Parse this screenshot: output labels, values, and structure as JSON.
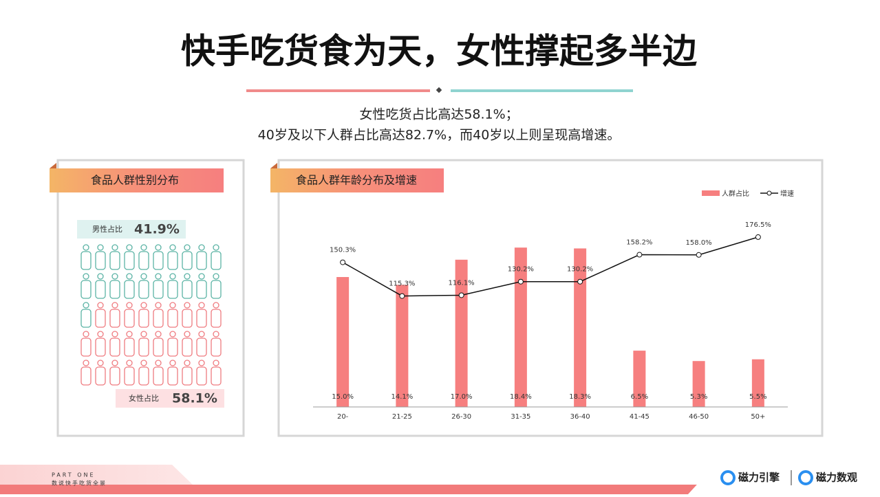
{
  "header": {
    "title": "快手吃货食为天，女性撑起多半边",
    "subtitle": [
      "女性吃货占比高达58.1%；",
      "40岁及以下人群占比高达82.7%，而40岁以上则呈现高增速。"
    ]
  },
  "gender_panel": {
    "title": "食品人群性别分布",
    "male_label": "男性占比",
    "male_value": "41.9%",
    "female_label": "女性占比",
    "female_value": "58.1%"
  },
  "chart_data": {
    "type": "bar",
    "title": "食品人群年龄分布及增速",
    "categories": [
      "20-",
      "21-25",
      "26-30",
      "31-35",
      "36-40",
      "41-45",
      "46-50",
      "50+"
    ],
    "series": [
      {
        "name": "人群占比",
        "type": "bar",
        "color": "#f67f7f",
        "values": [
          15.0,
          14.1,
          17.0,
          18.4,
          18.3,
          6.5,
          5.3,
          5.5
        ],
        "value_labels": [
          "15.0%",
          "14.1%",
          "17.0%",
          "18.4%",
          "18.3%",
          "6.5%",
          "5.3%",
          "5.5%"
        ]
      },
      {
        "name": "增速",
        "type": "line",
        "axis": "y2",
        "color": "#111111",
        "values": [
          150.3,
          115.3,
          116.1,
          130.2,
          130.2,
          158.2,
          158.0,
          176.5
        ],
        "value_labels": [
          "150.3%",
          "115.3%",
          "116.1%",
          "130.2%",
          "130.2%",
          "158.2%",
          "158.0%",
          "176.5%"
        ]
      }
    ],
    "ylim": [
      0,
      20
    ],
    "y2lim": [
      0,
      180
    ]
  },
  "footer": {
    "part": "PART ONE",
    "section": "数说快手吃货全景",
    "logo1": "磁力引擎",
    "logo2": "磁力数观"
  }
}
